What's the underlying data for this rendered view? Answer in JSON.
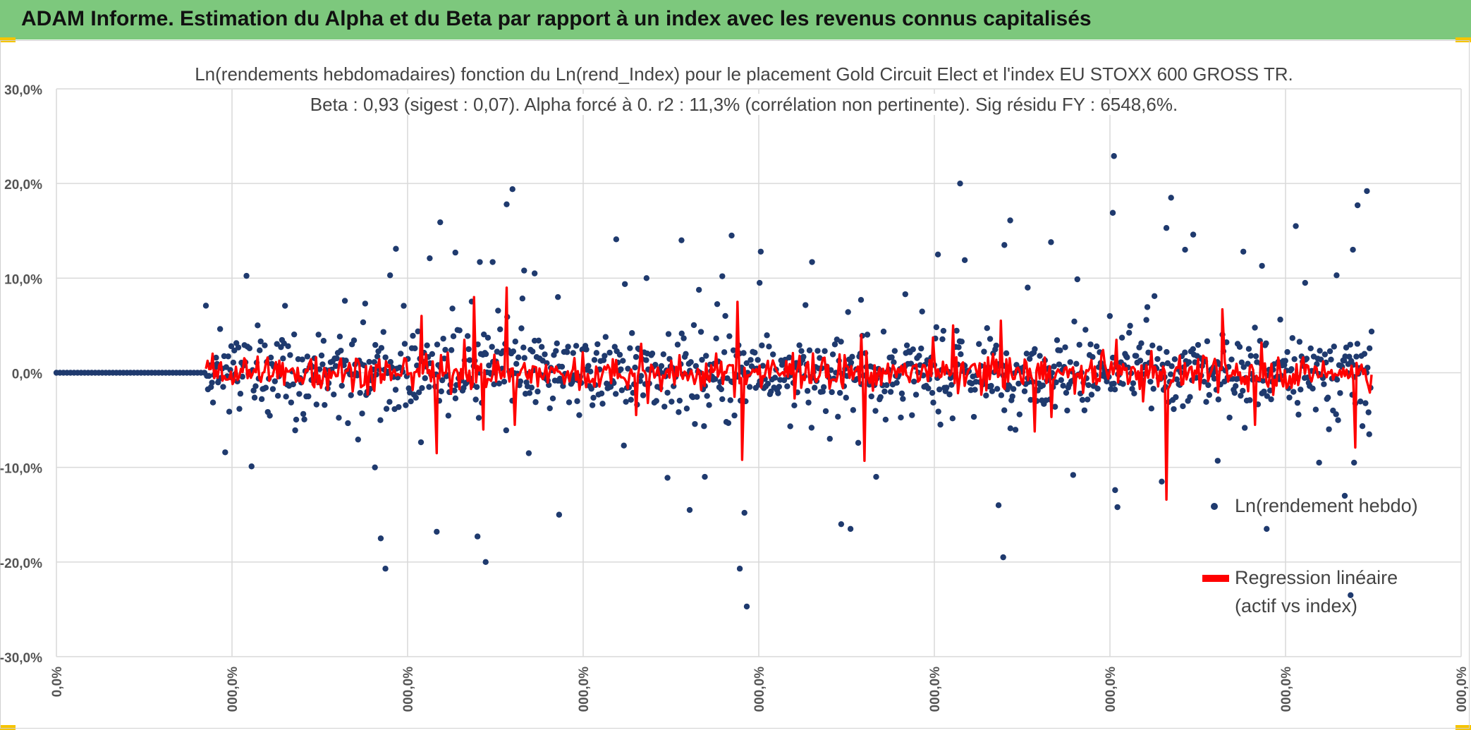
{
  "banner": {
    "title": "ADAM Informe. Estimation du Alpha et du Beta par rapport à un index avec les revenus connus capitalisés"
  },
  "chart_data": {
    "type": "scatter",
    "title": "Ln(rendements hebdomadaires) fonction du Ln(rend_Index) pour le placement Gold Circuit Elect  et l'index EU STOXX 600 GROSS TR.",
    "subtitle": "Beta : 0,93 (sigest : 0,07). Alpha forcé à 0. r2 : 11,3% (corrélation non pertinente). Sig résidu FY : 6548,6%.",
    "y_ticks": [
      "30,0%",
      "20,0%",
      "10,0%",
      "0,0%",
      "-10,0%",
      "-20,0%",
      "-30,0%"
    ],
    "x_ticks": [
      "0,0%",
      "000,0%",
      "000,0%",
      "000,0%",
      "000,0%",
      "000,0%",
      "000,0%",
      "000,0%",
      "000,0%"
    ],
    "ylim": [
      -30,
      30
    ],
    "grid": true,
    "legend_position": "right",
    "series": [
      {
        "name": "Ln(rendement hebdo)",
        "kind": "scatter",
        "color": "#1f3a6e"
      },
      {
        "name": "Regression linéaire (actif vs index)",
        "kind": "line",
        "color": "#ff0000"
      }
    ],
    "legend": {
      "scatter_label": "Ln(rendement hebdo)",
      "line_label_1": "Regression linéaire",
      "line_label_2": "(actif vs index)"
    },
    "scatter_highlights": [
      {
        "x": 0.145,
        "y": -10.0
      },
      {
        "x": 0.15,
        "y": -17.5
      },
      {
        "x": 0.154,
        "y": -20.7
      },
      {
        "x": 0.158,
        "y": 10.3
      },
      {
        "x": 0.163,
        "y": 13.1
      },
      {
        "x": 0.192,
        "y": 12.1
      },
      {
        "x": 0.201,
        "y": 15.9
      },
      {
        "x": 0.198,
        "y": -16.8
      },
      {
        "x": 0.214,
        "y": 12.7
      },
      {
        "x": 0.233,
        "y": -17.3
      },
      {
        "x": 0.24,
        "y": -20.0
      },
      {
        "x": 0.235,
        "y": 11.7
      },
      {
        "x": 0.246,
        "y": 11.7
      },
      {
        "x": 0.258,
        "y": 17.8
      },
      {
        "x": 0.263,
        "y": 19.4
      },
      {
        "x": 0.282,
        "y": 10.5
      },
      {
        "x": 0.273,
        "y": 10.8
      },
      {
        "x": 0.277,
        "y": -8.5
      },
      {
        "x": 0.302,
        "y": 8.0
      },
      {
        "x": 0.303,
        "y": -15.0
      },
      {
        "x": 0.352,
        "y": 14.1
      },
      {
        "x": 0.408,
        "y": 14.0
      },
      {
        "x": 0.396,
        "y": -11.1
      },
      {
        "x": 0.378,
        "y": 10.0
      },
      {
        "x": 0.428,
        "y": -11.0
      },
      {
        "x": 0.415,
        "y": -14.5
      },
      {
        "x": 0.443,
        "y": 10.2
      },
      {
        "x": 0.451,
        "y": 14.5
      },
      {
        "x": 0.458,
        "y": -20.7
      },
      {
        "x": 0.464,
        "y": -24.7
      },
      {
        "x": 0.462,
        "y": -14.8
      },
      {
        "x": 0.476,
        "y": 12.8
      },
      {
        "x": 0.475,
        "y": 9.5
      },
      {
        "x": 0.52,
        "y": 11.7
      },
      {
        "x": 0.545,
        "y": -16.0
      },
      {
        "x": 0.553,
        "y": -16.5
      },
      {
        "x": 0.575,
        "y": -11.0
      },
      {
        "x": 0.562,
        "y": 7.7
      },
      {
        "x": 0.6,
        "y": 8.3
      },
      {
        "x": 0.628,
        "y": 12.5
      },
      {
        "x": 0.647,
        "y": 20.0
      },
      {
        "x": 0.651,
        "y": 11.9
      },
      {
        "x": 0.685,
        "y": 13.5
      },
      {
        "x": 0.69,
        "y": 16.1
      },
      {
        "x": 0.68,
        "y": -14.0
      },
      {
        "x": 0.684,
        "y": -19.5
      },
      {
        "x": 0.705,
        "y": 9.0
      },
      {
        "x": 0.725,
        "y": 13.8
      },
      {
        "x": 0.744,
        "y": -10.8
      },
      {
        "x": 0.779,
        "y": 22.9
      },
      {
        "x": 0.778,
        "y": 16.9
      },
      {
        "x": 0.782,
        "y": -14.2
      },
      {
        "x": 0.78,
        "y": -12.4
      },
      {
        "x": 0.824,
        "y": 15.3
      },
      {
        "x": 0.828,
        "y": 18.5
      },
      {
        "x": 0.84,
        "y": 13.0
      },
      {
        "x": 0.82,
        "y": -11.5
      },
      {
        "x": 0.847,
        "y": 14.6
      },
      {
        "x": 0.868,
        "y": -9.3
      },
      {
        "x": 0.89,
        "y": 12.8
      },
      {
        "x": 0.906,
        "y": 11.3
      },
      {
        "x": 0.91,
        "y": -16.5
      },
      {
        "x": 0.935,
        "y": 15.5
      },
      {
        "x": 0.943,
        "y": 9.5
      },
      {
        "x": 0.97,
        "y": 10.3
      },
      {
        "x": 0.984,
        "y": 13.0
      },
      {
        "x": 0.988,
        "y": 17.7
      },
      {
        "x": 0.996,
        "y": 19.2
      },
      {
        "x": 0.982,
        "y": -23.5
      },
      {
        "x": 0.977,
        "y": -13.0
      },
      {
        "x": 0.985,
        "y": -9.5
      },
      {
        "x": 0.998,
        "y": -6.5
      },
      {
        "x": 0.955,
        "y": -9.5
      }
    ],
    "regression_spikes": [
      {
        "x": 0.185,
        "y": 6.0
      },
      {
        "x": 0.198,
        "y": -8.5
      },
      {
        "x": 0.23,
        "y": 8.0
      },
      {
        "x": 0.238,
        "y": -6.0
      },
      {
        "x": 0.258,
        "y": 9.0
      },
      {
        "x": 0.265,
        "y": -5.5
      },
      {
        "x": 0.456,
        "y": 7.5
      },
      {
        "x": 0.46,
        "y": -9.2
      },
      {
        "x": 0.565,
        "y": -9.3
      },
      {
        "x": 0.641,
        "y": 5.0
      },
      {
        "x": 0.682,
        "y": 5.5
      },
      {
        "x": 0.711,
        "y": -6.2
      },
      {
        "x": 0.824,
        "y": -13.4
      },
      {
        "x": 0.872,
        "y": 6.7
      },
      {
        "x": 0.9,
        "y": -5.5
      },
      {
        "x": 0.986,
        "y": -7.9
      }
    ]
  }
}
